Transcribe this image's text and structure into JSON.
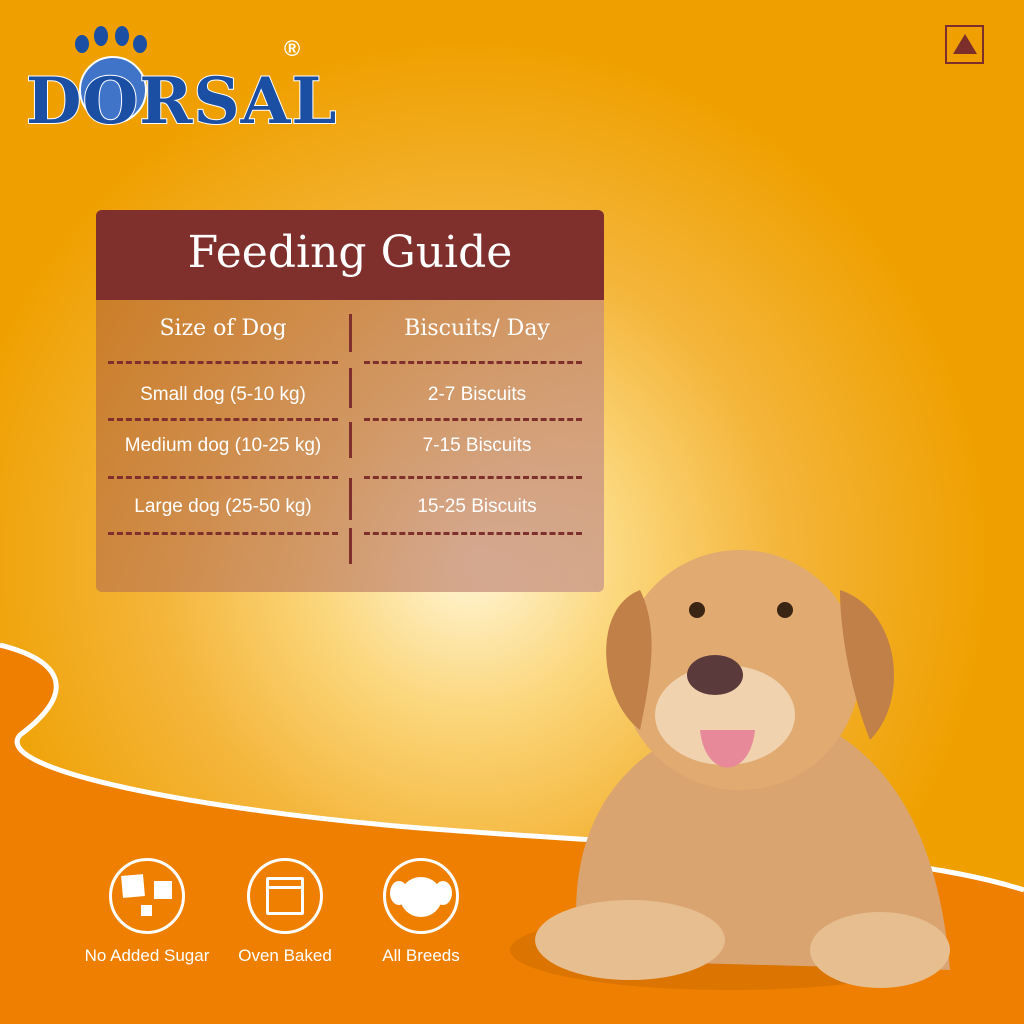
{
  "brand": {
    "name": "DORSAL",
    "registered": "®",
    "colors": {
      "brand": "#1a4fa3",
      "accent": "#7f2f2c",
      "orange": "#ee7f00"
    }
  },
  "badge": {
    "icon": "non-veg-symbol-icon"
  },
  "feeding_guide": {
    "title": "Feeding Guide",
    "columns": [
      "Size of Dog",
      "Biscuits/ Day"
    ],
    "rows": [
      {
        "size": "Small dog (5-10 kg)",
        "biscuits": "2-7  Biscuits"
      },
      {
        "size": "Medium dog (10-25 kg)",
        "biscuits": "7-15 Biscuits"
      },
      {
        "size": "Large dog (25-50 kg)",
        "biscuits": "15-25 Biscuits"
      }
    ]
  },
  "features": [
    {
      "label": "No Added Sugar",
      "icon": "sugar-cubes-icon"
    },
    {
      "label": "Oven Baked",
      "icon": "oven-icon"
    },
    {
      "label": "All Breeds",
      "icon": "dog-face-icon"
    }
  ]
}
